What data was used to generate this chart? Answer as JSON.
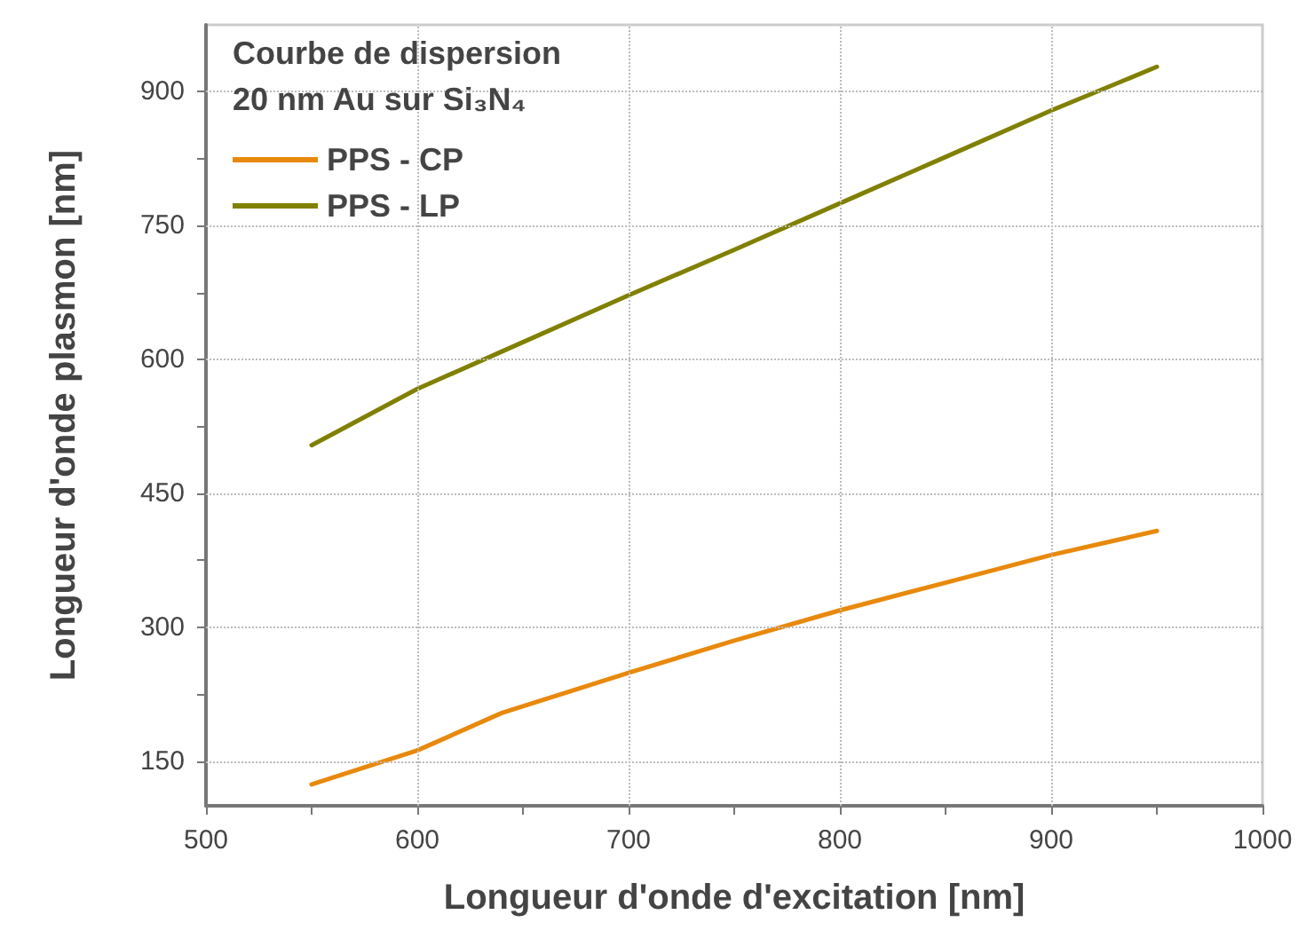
{
  "chart_data": {
    "type": "line",
    "title": "Courbe de dispersion",
    "subtitle": "20 nm Au sur Si₃N₄",
    "xlabel": "Longueur d'onde d'excitation [nm]",
    "ylabel": "Longueur d'onde plasmon [nm]",
    "xlim": [
      500,
      1000
    ],
    "xticks": [
      500,
      {
        "value": 550,
        "label": null
      },
      600,
      {
        "value": 650,
        "label": null
      },
      700,
      {
        "value": 750,
        "label": null
      },
      800,
      {
        "value": 850,
        "label": null
      },
      900,
      {
        "value": 950,
        "label": null
      },
      1000
    ],
    "ylim": [
      100,
      975
    ],
    "yticks": [
      150,
      {
        "value": 225,
        "label": null
      },
      300,
      {
        "value": 375,
        "label": null
      },
      450,
      {
        "value": 525,
        "label": null
      },
      600,
      {
        "value": 675,
        "label": null
      },
      750,
      {
        "value": 825,
        "label": null
      },
      900
    ],
    "x": [
      550,
      600,
      640,
      700,
      750,
      800,
      850,
      900,
      950
    ],
    "series": [
      {
        "name": "PPS - CP",
        "color": "#e8890c",
        "values": [
          124,
          162,
          204,
          249,
          285,
          319,
          350,
          381,
          408
        ]
      },
      {
        "name": "PPS - LP",
        "color": "#808000",
        "values": [
          504,
          567,
          609,
          672,
          723,
          775,
          827,
          879,
          928
        ]
      }
    ],
    "grid": true,
    "legend": "top left",
    "marker": "none",
    "line_style": "solid"
  }
}
